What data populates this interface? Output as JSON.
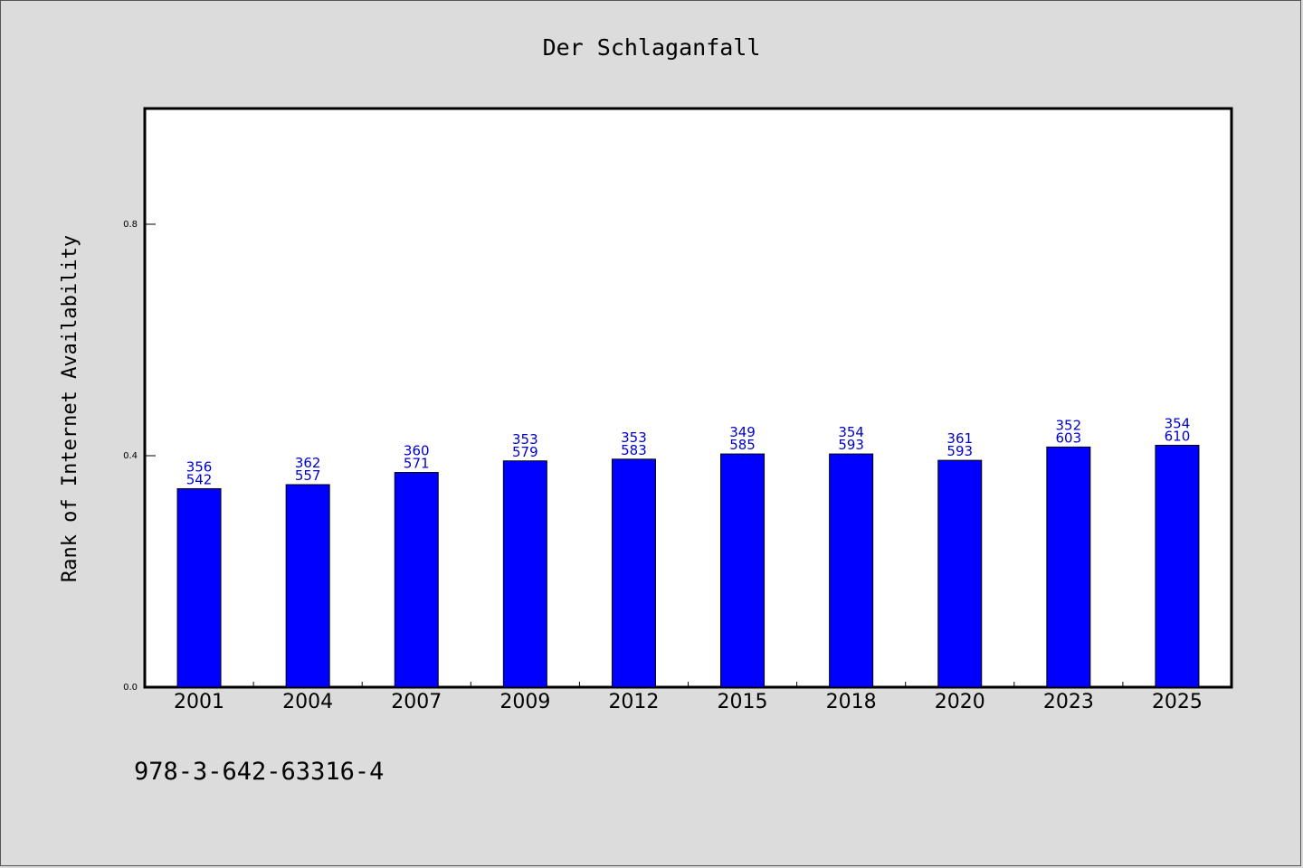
{
  "chart_data": {
    "type": "bar",
    "title": "Der Schlaganfall",
    "xlabel": "",
    "ylabel": "Rank of Internet Availability",
    "categories": [
      "2001",
      "2004",
      "2007",
      "2009",
      "2012",
      "2015",
      "2018",
      "2020",
      "2023",
      "2025"
    ],
    "values": [
      0.343,
      0.35,
      0.371,
      0.391,
      0.394,
      0.403,
      0.403,
      0.392,
      0.415,
      0.418
    ],
    "data_labels": [
      [
        "356",
        "542"
      ],
      [
        "362",
        "557"
      ],
      [
        "360",
        "571"
      ],
      [
        "353",
        "579"
      ],
      [
        "353",
        "583"
      ],
      [
        "349",
        "585"
      ],
      [
        "354",
        "593"
      ],
      [
        "361",
        "593"
      ],
      [
        "352",
        "603"
      ],
      [
        "354",
        "610"
      ]
    ],
    "yticks": [
      "0.0",
      "0.4",
      "0.8"
    ],
    "ytick_values": [
      0.0,
      0.4,
      0.8
    ],
    "ylim": [
      0,
      1.0
    ],
    "grid": false,
    "legend": "none",
    "colors": {
      "bar": "#0000ff",
      "label": "#0000cc",
      "background": "#dcdcdc",
      "plot": "#ffffff"
    }
  },
  "footer": "978-3-642-63316-4"
}
